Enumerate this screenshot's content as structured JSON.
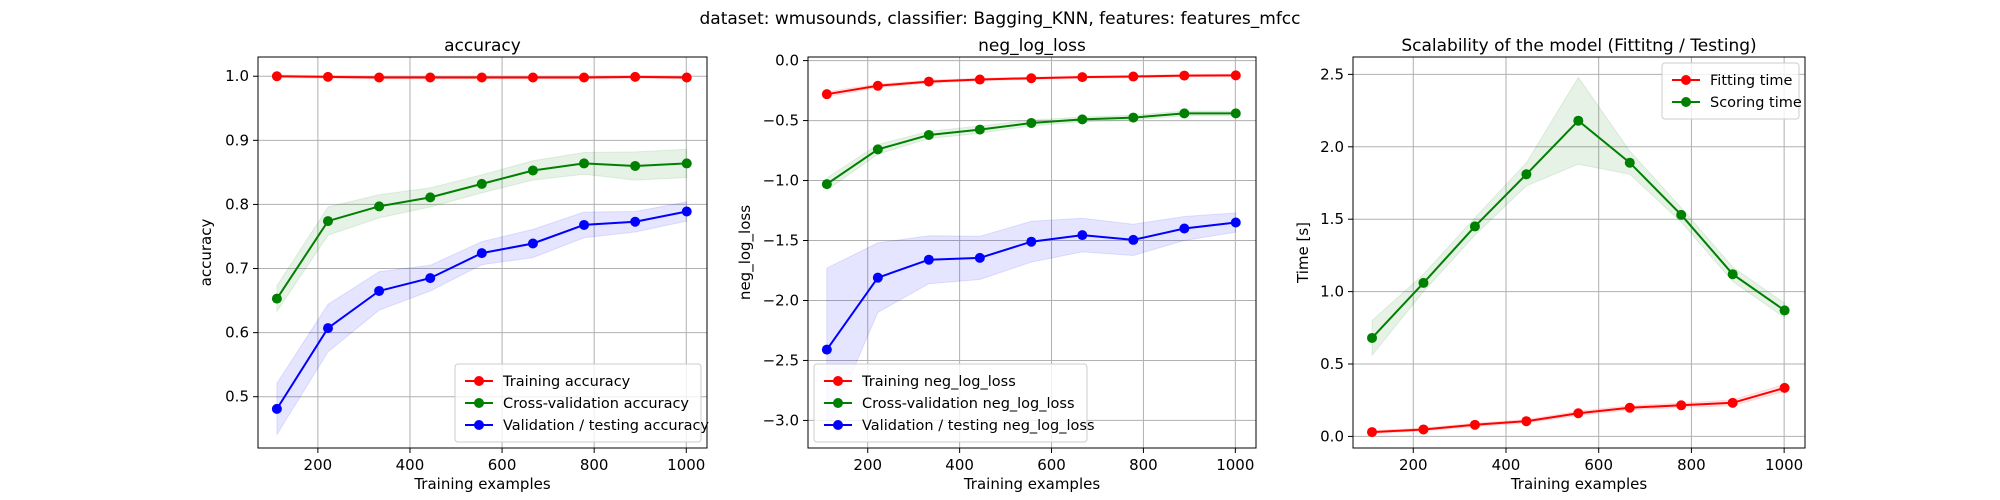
{
  "figure": {
    "suptitle": "dataset: wmusounds, classifier: Bagging_KNN, features: features_mfcc"
  },
  "chart_data": [
    {
      "type": "line",
      "title": "accuracy",
      "xlabel": "Training examples",
      "ylabel": "accuracy",
      "xlim": [
        70,
        1045
      ],
      "ylim": [
        0.42,
        1.03
      ],
      "xticks": [
        200,
        400,
        600,
        800,
        1000
      ],
      "yticks": [
        0.5,
        0.6,
        0.7,
        0.8,
        0.9,
        1.0
      ],
      "ytick_labels": [
        "0.5",
        "0.6",
        "0.7",
        "0.8",
        "0.9",
        "1.0"
      ],
      "grid": true,
      "legend_position": "lower-right",
      "x": [
        111,
        222,
        333,
        444,
        556,
        667,
        778,
        889,
        1001
      ],
      "series": [
        {
          "name": "Training accuracy",
          "color": "#ff0000",
          "values": [
            1.0,
            0.999,
            0.998,
            0.998,
            0.998,
            0.998,
            0.998,
            0.999,
            0.998
          ],
          "band": [
            0.002,
            0.002,
            0.002,
            0.002,
            0.002,
            0.002,
            0.002,
            0.002,
            0.002
          ]
        },
        {
          "name": "Cross-validation accuracy",
          "color": "#008000",
          "values": [
            0.653,
            0.774,
            0.797,
            0.811,
            0.832,
            0.853,
            0.864,
            0.86,
            0.864
          ],
          "band": [
            0.02,
            0.022,
            0.018,
            0.015,
            0.014,
            0.015,
            0.017,
            0.022,
            0.022
          ]
        },
        {
          "name": "Validation / testing accuracy",
          "color": "#0000ff",
          "values": [
            0.481,
            0.607,
            0.665,
            0.685,
            0.724,
            0.739,
            0.768,
            0.773,
            0.789
          ],
          "band": [
            0.04,
            0.037,
            0.03,
            0.02,
            0.018,
            0.022,
            0.02,
            0.016,
            0.015
          ]
        }
      ]
    },
    {
      "type": "line",
      "title": "neg_log_loss",
      "xlabel": "Training examples",
      "ylabel": "neg_log_loss",
      "xlim": [
        70,
        1045
      ],
      "ylim": [
        -3.23,
        0.03
      ],
      "xticks": [
        200,
        400,
        600,
        800,
        1000
      ],
      "yticks": [
        -3.0,
        -2.5,
        -2.0,
        -1.5,
        -1.0,
        -0.5,
        0.0
      ],
      "ytick_labels": [
        "−3.0",
        "−2.5",
        "−2.0",
        "−1.5",
        "−1.0",
        "−0.5",
        "0.0"
      ],
      "grid": true,
      "legend_position": "lower-left",
      "x": [
        111,
        222,
        333,
        444,
        556,
        667,
        778,
        889,
        1001
      ],
      "series": [
        {
          "name": "Training neg_log_loss",
          "color": "#ff0000",
          "values": [
            -0.28,
            -0.21,
            -0.175,
            -0.158,
            -0.147,
            -0.138,
            -0.133,
            -0.125,
            -0.123
          ],
          "band": [
            0.02,
            0.015,
            0.012,
            0.01,
            0.01,
            0.01,
            0.01,
            0.01,
            0.01
          ]
        },
        {
          "name": "Cross-validation neg_log_loss",
          "color": "#008000",
          "values": [
            -1.03,
            -0.74,
            -0.62,
            -0.575,
            -0.52,
            -0.49,
            -0.475,
            -0.44,
            -0.44
          ],
          "band": [
            0.05,
            0.04,
            0.03,
            0.03,
            0.025,
            0.02,
            0.02,
            0.02,
            0.02
          ]
        },
        {
          "name": "Validation / testing neg_log_loss",
          "color": "#0000ff",
          "values": [
            -2.41,
            -1.81,
            -1.66,
            -1.645,
            -1.51,
            -1.455,
            -1.495,
            -1.4,
            -1.35
          ],
          "band": [
            0.68,
            0.29,
            0.2,
            0.18,
            0.17,
            0.14,
            0.13,
            0.1,
            0.08
          ]
        }
      ]
    },
    {
      "type": "line",
      "title": "Scalability of the model (Fittitng / Testing)",
      "xlabel": "Training examples",
      "ylabel": "Time [s]",
      "xlim": [
        70,
        1045
      ],
      "ylim": [
        -0.08,
        2.62
      ],
      "xticks": [
        200,
        400,
        600,
        800,
        1000
      ],
      "yticks": [
        0.0,
        0.5,
        1.0,
        1.5,
        2.0,
        2.5
      ],
      "ytick_labels": [
        "0.0",
        "0.5",
        "1.0",
        "1.5",
        "2.0",
        "2.5"
      ],
      "grid": true,
      "legend_position": "upper-right",
      "x": [
        111,
        222,
        333,
        444,
        556,
        667,
        778,
        889,
        1001
      ],
      "series": [
        {
          "name": "Fitting time",
          "color": "#ff0000",
          "values": [
            0.03,
            0.048,
            0.08,
            0.105,
            0.16,
            0.198,
            0.215,
            0.232,
            0.335
          ],
          "band": [
            0.01,
            0.01,
            0.012,
            0.012,
            0.015,
            0.015,
            0.015,
            0.02,
            0.025
          ]
        },
        {
          "name": "Scoring time",
          "color": "#008000",
          "values": [
            0.68,
            1.06,
            1.45,
            1.81,
            2.18,
            1.89,
            1.53,
            1.12,
            0.87
          ],
          "band": [
            0.12,
            0.06,
            0.06,
            0.08,
            0.3,
            0.08,
            0.05,
            0.05,
            0.05
          ]
        }
      ]
    }
  ]
}
